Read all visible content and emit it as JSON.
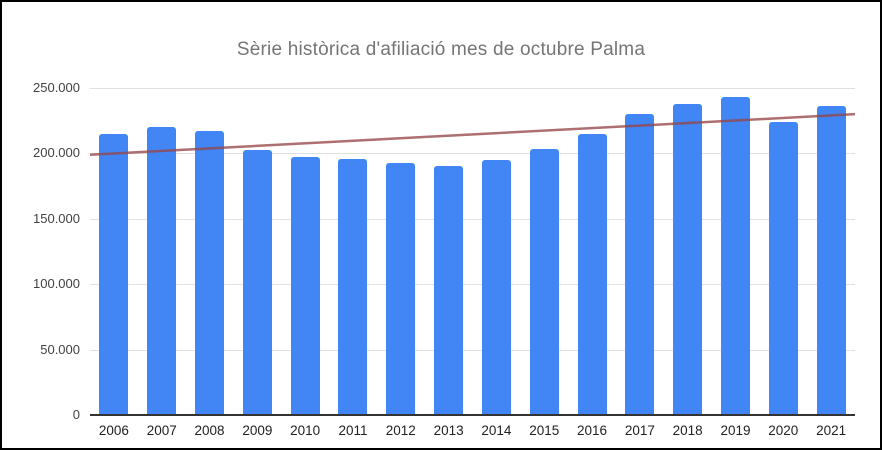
{
  "chart_data": {
    "type": "bar",
    "title": "Sèrie històrica d'afiliació mes de octubre Palma",
    "xlabel": "",
    "ylabel": "",
    "categories": [
      "2006",
      "2007",
      "2008",
      "2009",
      "2010",
      "2011",
      "2012",
      "2013",
      "2014",
      "2015",
      "2016",
      "2017",
      "2018",
      "2019",
      "2020",
      "2021"
    ],
    "values": [
      215000,
      220000,
      217500,
      202500,
      197000,
      195500,
      192500,
      190500,
      195000,
      203000,
      215000,
      230000,
      237500,
      243500,
      224000,
      236000
    ],
    "ylim": [
      0,
      250000
    ],
    "y_ticks": [
      {
        "value": 0,
        "label": "0"
      },
      {
        "value": 50000,
        "label": "50.000"
      },
      {
        "value": 100000,
        "label": "100.000"
      },
      {
        "value": 150000,
        "label": "150.000"
      },
      {
        "value": 200000,
        "label": "200.000"
      },
      {
        "value": 250000,
        "label": "250.000"
      }
    ],
    "grid": true,
    "legend": "none",
    "trendline": {
      "type": "linear",
      "start_value": 199000,
      "end_value": 230000
    },
    "colors": {
      "bar": "#4285f4",
      "trendline": "rgba(150,70,70,0.78)",
      "title_text": "#757575",
      "y_axis_text": "#424242",
      "x_axis_text": "#222222",
      "gridline": "#e0e0e0",
      "baseline": "#333333",
      "frame_border": "#000000",
      "background": "#ffffff"
    }
  }
}
